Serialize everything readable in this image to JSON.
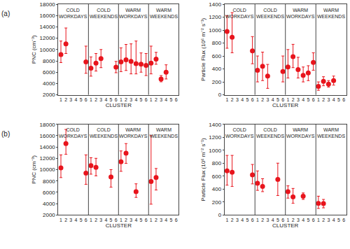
{
  "chart_data": [
    {
      "type": "scatter",
      "title": "(a)",
      "x_label": "CLUSTER",
      "y_label": "PNC (cm⁻³)",
      "groups": [
        "COLD WORKDAYS",
        "COLD WEEKENDS",
        "WARM WORKDAYS",
        "WARM WEEKENDS"
      ],
      "categories": [
        "1",
        "2",
        "3",
        "4",
        "5",
        "6",
        "1",
        "2",
        "3",
        "4",
        "5",
        "6",
        "1",
        "2",
        "3",
        "4",
        "5",
        "6",
        "1",
        "2",
        "3",
        "4",
        "5",
        "6"
      ],
      "values": [
        9100,
        11000,
        null,
        null,
        null,
        7800,
        6700,
        7600,
        8400,
        null,
        null,
        6900,
        7800,
        8200,
        7900,
        7500,
        7400,
        7200,
        7600,
        8300,
        4800,
        6000,
        null,
        null
      ],
      "error_plus": [
        2400,
        2800,
        null,
        null,
        null,
        2800,
        2000,
        1700,
        1600,
        null,
        null,
        1000,
        2500,
        2700,
        3100,
        4000,
        2000,
        2100,
        3000,
        1200,
        600,
        1300,
        null,
        null
      ],
      "error_minus": [
        1400,
        1700,
        null,
        null,
        null,
        2000,
        1400,
        1400,
        1600,
        null,
        null,
        1000,
        1700,
        1900,
        2200,
        1800,
        1400,
        1800,
        1900,
        900,
        500,
        1200,
        null,
        null
      ],
      "color": "#e8141c",
      "marker": "circle",
      "ylim": [
        2000,
        18000
      ],
      "yticks": [
        2000,
        4000,
        6000,
        8000,
        10000,
        12000,
        14000,
        16000,
        18000
      ],
      "grid": false
    },
    {
      "type": "scatter",
      "x_label": "CLUSTER",
      "y_label": "Particle Flux (10⁶ m⁻² s⁻¹)",
      "groups": [
        "COLD WORKDAYS",
        "COLD WEEKENDS",
        "WARM WORKDAYS",
        "WARM WEEKENDS"
      ],
      "categories": [
        "1",
        "2",
        "3",
        "4",
        "5",
        "6",
        "1",
        "2",
        "3",
        "4",
        "5",
        "6",
        "1",
        "2",
        "3",
        "4",
        "5",
        "6",
        "1",
        "2",
        "3",
        "4",
        "5",
        "6"
      ],
      "values": [
        980,
        890,
        null,
        null,
        null,
        680,
        380,
        440,
        290,
        null,
        null,
        360,
        430,
        590,
        390,
        300,
        340,
        500,
        130,
        210,
        165,
        220,
        null,
        null
      ],
      "error_plus": [
        240,
        380,
        null,
        null,
        null,
        220,
        220,
        220,
        180,
        null,
        null,
        240,
        270,
        190,
        190,
        130,
        110,
        150,
        70,
        70,
        55,
        70,
        null,
        null
      ],
      "error_minus": [
        260,
        240,
        null,
        null,
        null,
        200,
        180,
        220,
        190,
        null,
        null,
        160,
        170,
        170,
        130,
        100,
        120,
        120,
        60,
        70,
        45,
        70,
        null,
        null
      ],
      "color": "#e8141c",
      "marker": "circle",
      "ylim": [
        0,
        1400
      ],
      "yticks": [
        0,
        200,
        400,
        600,
        800,
        1000,
        1200,
        1400
      ],
      "grid": false
    },
    {
      "type": "scatter",
      "title": "(b)",
      "x_label": "CLUSTER",
      "y_label": "PNC (cm⁻³)",
      "groups": [
        "COLD WORKDAYS",
        "COLD WEEKENDS",
        "WARM WORKDAYS",
        "WARM WEEKENDS"
      ],
      "categories": [
        "1",
        "2",
        "3",
        "4",
        "5",
        "6",
        "1",
        "2",
        "3",
        "4",
        "5",
        "6",
        "1",
        "2",
        "3",
        "4",
        "5",
        "6",
        "1",
        "2",
        "3",
        "4",
        "5",
        "6"
      ],
      "values": [
        10300,
        14600,
        null,
        null,
        null,
        9400,
        10700,
        10400,
        null,
        null,
        8700,
        null,
        11400,
        12900,
        null,
        6100,
        null,
        null,
        7900,
        8600,
        null,
        null,
        null,
        null
      ],
      "error_plus": [
        2300,
        2500,
        null,
        null,
        null,
        3200,
        1400,
        1600,
        null,
        null,
        1300,
        null,
        1900,
        1700,
        null,
        1400,
        null,
        null,
        8100,
        1600,
        null,
        null,
        null,
        null
      ],
      "error_minus": [
        1700,
        1900,
        null,
        null,
        null,
        2000,
        1500,
        1500,
        null,
        null,
        1800,
        null,
        1700,
        1800,
        null,
        1000,
        null,
        null,
        4000,
        2200,
        null,
        null,
        null,
        null
      ],
      "color": "#e8141c",
      "marker": "circle",
      "ylim": [
        2000,
        18000
      ],
      "yticks": [
        2000,
        4000,
        6000,
        8000,
        10000,
        12000,
        14000,
        16000,
        18000
      ],
      "grid": false
    },
    {
      "type": "scatter",
      "x_label": "CLUSTER",
      "y_label": "Particle Flux (10⁶ m⁻² s⁻¹)",
      "groups": [
        "COLD WORKDAYS",
        "COLD WEEKENDS",
        "WARM WORKDAYS",
        "WARM WEEKENDS"
      ],
      "categories": [
        "1",
        "2",
        "3",
        "4",
        "5",
        "6",
        "1",
        "2",
        "3",
        "4",
        "5",
        "6",
        "1",
        "2",
        "3",
        "4",
        "5",
        "6",
        "1",
        "2",
        "3",
        "4",
        "5",
        "6"
      ],
      "values": [
        680,
        660,
        null,
        null,
        null,
        620,
        490,
        440,
        null,
        null,
        550,
        null,
        360,
        280,
        null,
        290,
        null,
        null,
        180,
        175,
        null,
        null,
        null,
        null
      ],
      "error_plus": [
        240,
        260,
        null,
        null,
        null,
        160,
        190,
        120,
        null,
        null,
        250,
        null,
        90,
        130,
        null,
        50,
        null,
        null,
        110,
        65,
        null,
        null,
        null,
        null
      ],
      "error_minus": [
        220,
        220,
        null,
        null,
        null,
        140,
        110,
        80,
        null,
        null,
        250,
        null,
        100,
        100,
        null,
        50,
        null,
        null,
        80,
        65,
        null,
        null,
        null,
        null
      ],
      "color": "#e8141c",
      "marker": "circle",
      "ylim": [
        0,
        1400
      ],
      "yticks": [
        0,
        200,
        400,
        600,
        800,
        1000,
        1200,
        1400
      ],
      "grid": false
    }
  ]
}
